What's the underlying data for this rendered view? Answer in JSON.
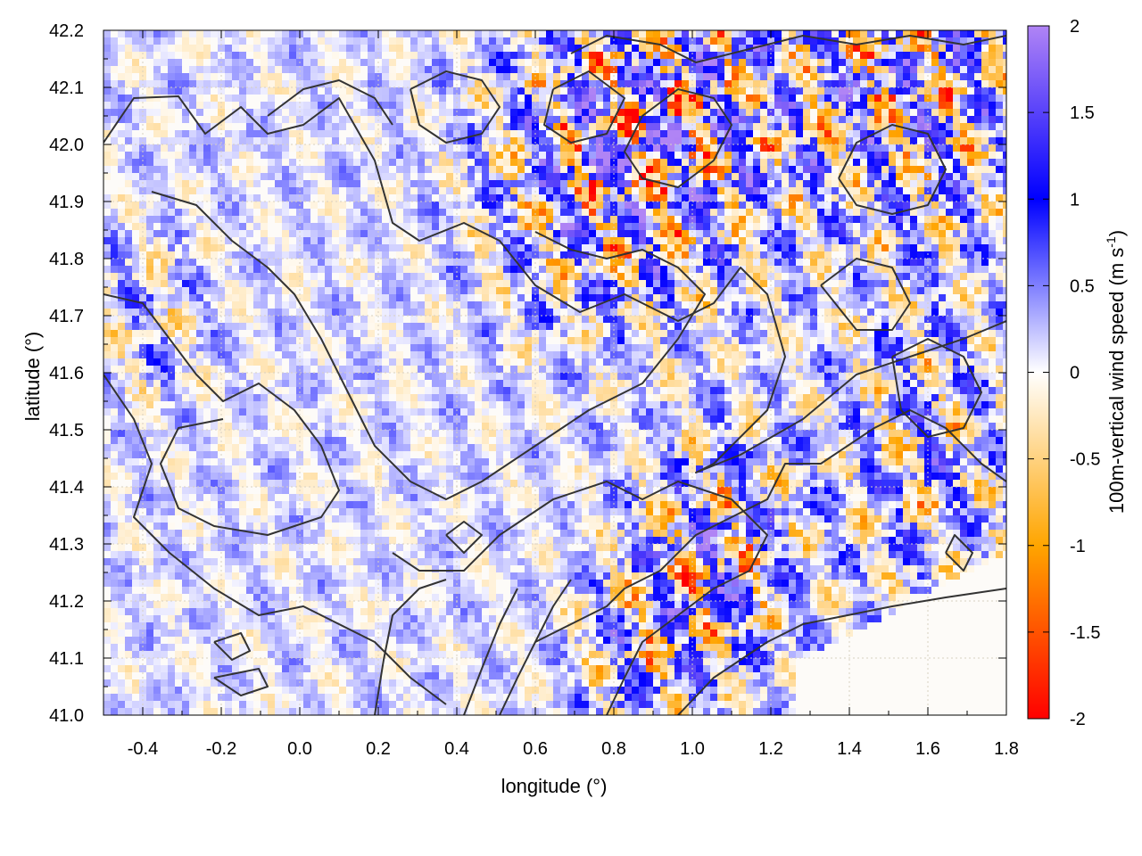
{
  "chart_data": {
    "type": "heatmap",
    "xlabel": "longitude (°)",
    "ylabel": "latitude (°)",
    "colorbar_label": "100m-vertical wind speed (m s",
    "colorbar_label_sup": "-1",
    "colorbar_label_end": ")",
    "xlim": [
      -0.5,
      1.8
    ],
    "ylim": [
      41.0,
      42.2
    ],
    "x_ticks": [
      -0.4,
      -0.2,
      0.0,
      0.2,
      0.4,
      0.6,
      0.8,
      1.0,
      1.2,
      1.4,
      1.6,
      1.8
    ],
    "x_tick_labels": [
      "-0.4",
      "-0.2",
      "0.0",
      "0.2",
      "0.4",
      "0.6",
      "0.8",
      "1.0",
      "1.2",
      "1.4",
      "1.6",
      "1.8"
    ],
    "y_ticks": [
      41.0,
      41.1,
      41.2,
      41.3,
      41.4,
      41.5,
      41.6,
      41.7,
      41.8,
      41.9,
      42.0,
      42.1,
      42.2
    ],
    "y_tick_labels": [
      "41.0",
      "41.1",
      "41.2",
      "41.3",
      "41.4",
      "41.5",
      "41.6",
      "41.7",
      "41.8",
      "41.9",
      "42.0",
      "42.1",
      "42.2"
    ],
    "colorbar": {
      "range": [
        -2,
        2
      ],
      "ticks": [
        -2,
        -1.5,
        -1,
        -0.5,
        0,
        0.5,
        1,
        1.5,
        2
      ],
      "tick_labels": [
        "-2",
        "-1.5",
        "-1",
        "-0.5",
        "0",
        "0.5",
        "1",
        "1.5",
        "2"
      ],
      "colors": [
        {
          "value": -2,
          "color": "#ff0000"
        },
        {
          "value": -1,
          "color": "#ffa500"
        },
        {
          "value": 0,
          "color": "#ffffff"
        },
        {
          "value": 1,
          "color": "#0000ff"
        },
        {
          "value": 2,
          "color": "#b084f5"
        }
      ]
    },
    "grid": true,
    "contours": true,
    "contour_color": "#333333"
  }
}
